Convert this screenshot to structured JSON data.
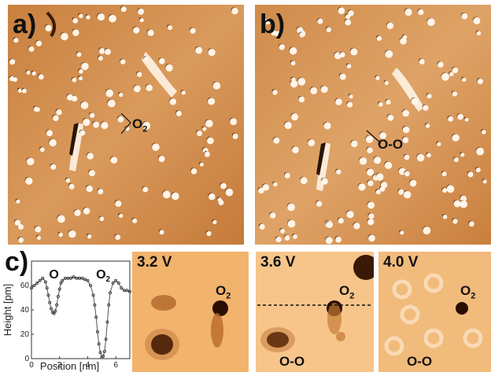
{
  "panels": {
    "a": {
      "label": "a)",
      "annotation": "O",
      "annotation_sub": "2"
    },
    "b": {
      "label": "b)",
      "annotation": "O-O"
    },
    "c": {
      "label": "c)"
    }
  },
  "stm_images": [
    {
      "bias": "3.2 V",
      "o2_label": "O",
      "o2_sub": "2"
    },
    {
      "bias": "3.6 V",
      "o2_label": "O",
      "o2_sub": "2",
      "oo_label": "O-O"
    },
    {
      "bias": "4.0 V",
      "o2_label": "O",
      "o2_sub": "2",
      "oo_label": "O-O"
    }
  ],
  "chart_data": {
    "type": "scatter",
    "xlabel": "Position [nm]",
    "ylabel": "Height [pm]",
    "xlim": [
      0,
      7
    ],
    "ylim": [
      0,
      80
    ],
    "x_ticks": [
      "0",
      "2",
      "4",
      "6"
    ],
    "y_ticks": [
      "0",
      "20",
      "40",
      "60"
    ],
    "annotations": [
      {
        "text": "O",
        "sub": "",
        "x": 1.6
      },
      {
        "text": "O",
        "sub": "2",
        "x": 5.1
      }
    ],
    "series": [
      {
        "values_x": [
          0.0,
          0.2,
          0.4,
          0.6,
          0.8,
          1.0,
          1.1,
          1.2,
          1.3,
          1.4,
          1.5,
          1.6,
          1.7,
          1.8,
          1.9,
          2.0,
          2.1,
          2.2,
          2.4,
          2.6,
          2.8,
          3.0,
          3.2,
          3.4,
          3.6,
          3.8,
          4.0,
          4.2,
          4.4,
          4.5,
          4.6,
          4.7,
          4.8,
          4.9,
          5.0,
          5.1,
          5.2,
          5.3,
          5.4,
          5.5,
          5.6,
          5.8,
          6.0,
          6.2,
          6.4,
          6.6,
          6.8,
          7.0
        ],
        "values_y": [
          58,
          60,
          62,
          64,
          66,
          63,
          58,
          52,
          46,
          41,
          38,
          37,
          39,
          44,
          51,
          57,
          62,
          64,
          66,
          66,
          66,
          67,
          66,
          66,
          66,
          65,
          64,
          60,
          52,
          44,
          34,
          22,
          12,
          5,
          1,
          2,
          6,
          16,
          30,
          44,
          54,
          62,
          64,
          62,
          58,
          56,
          56,
          55
        ]
      }
    ]
  }
}
